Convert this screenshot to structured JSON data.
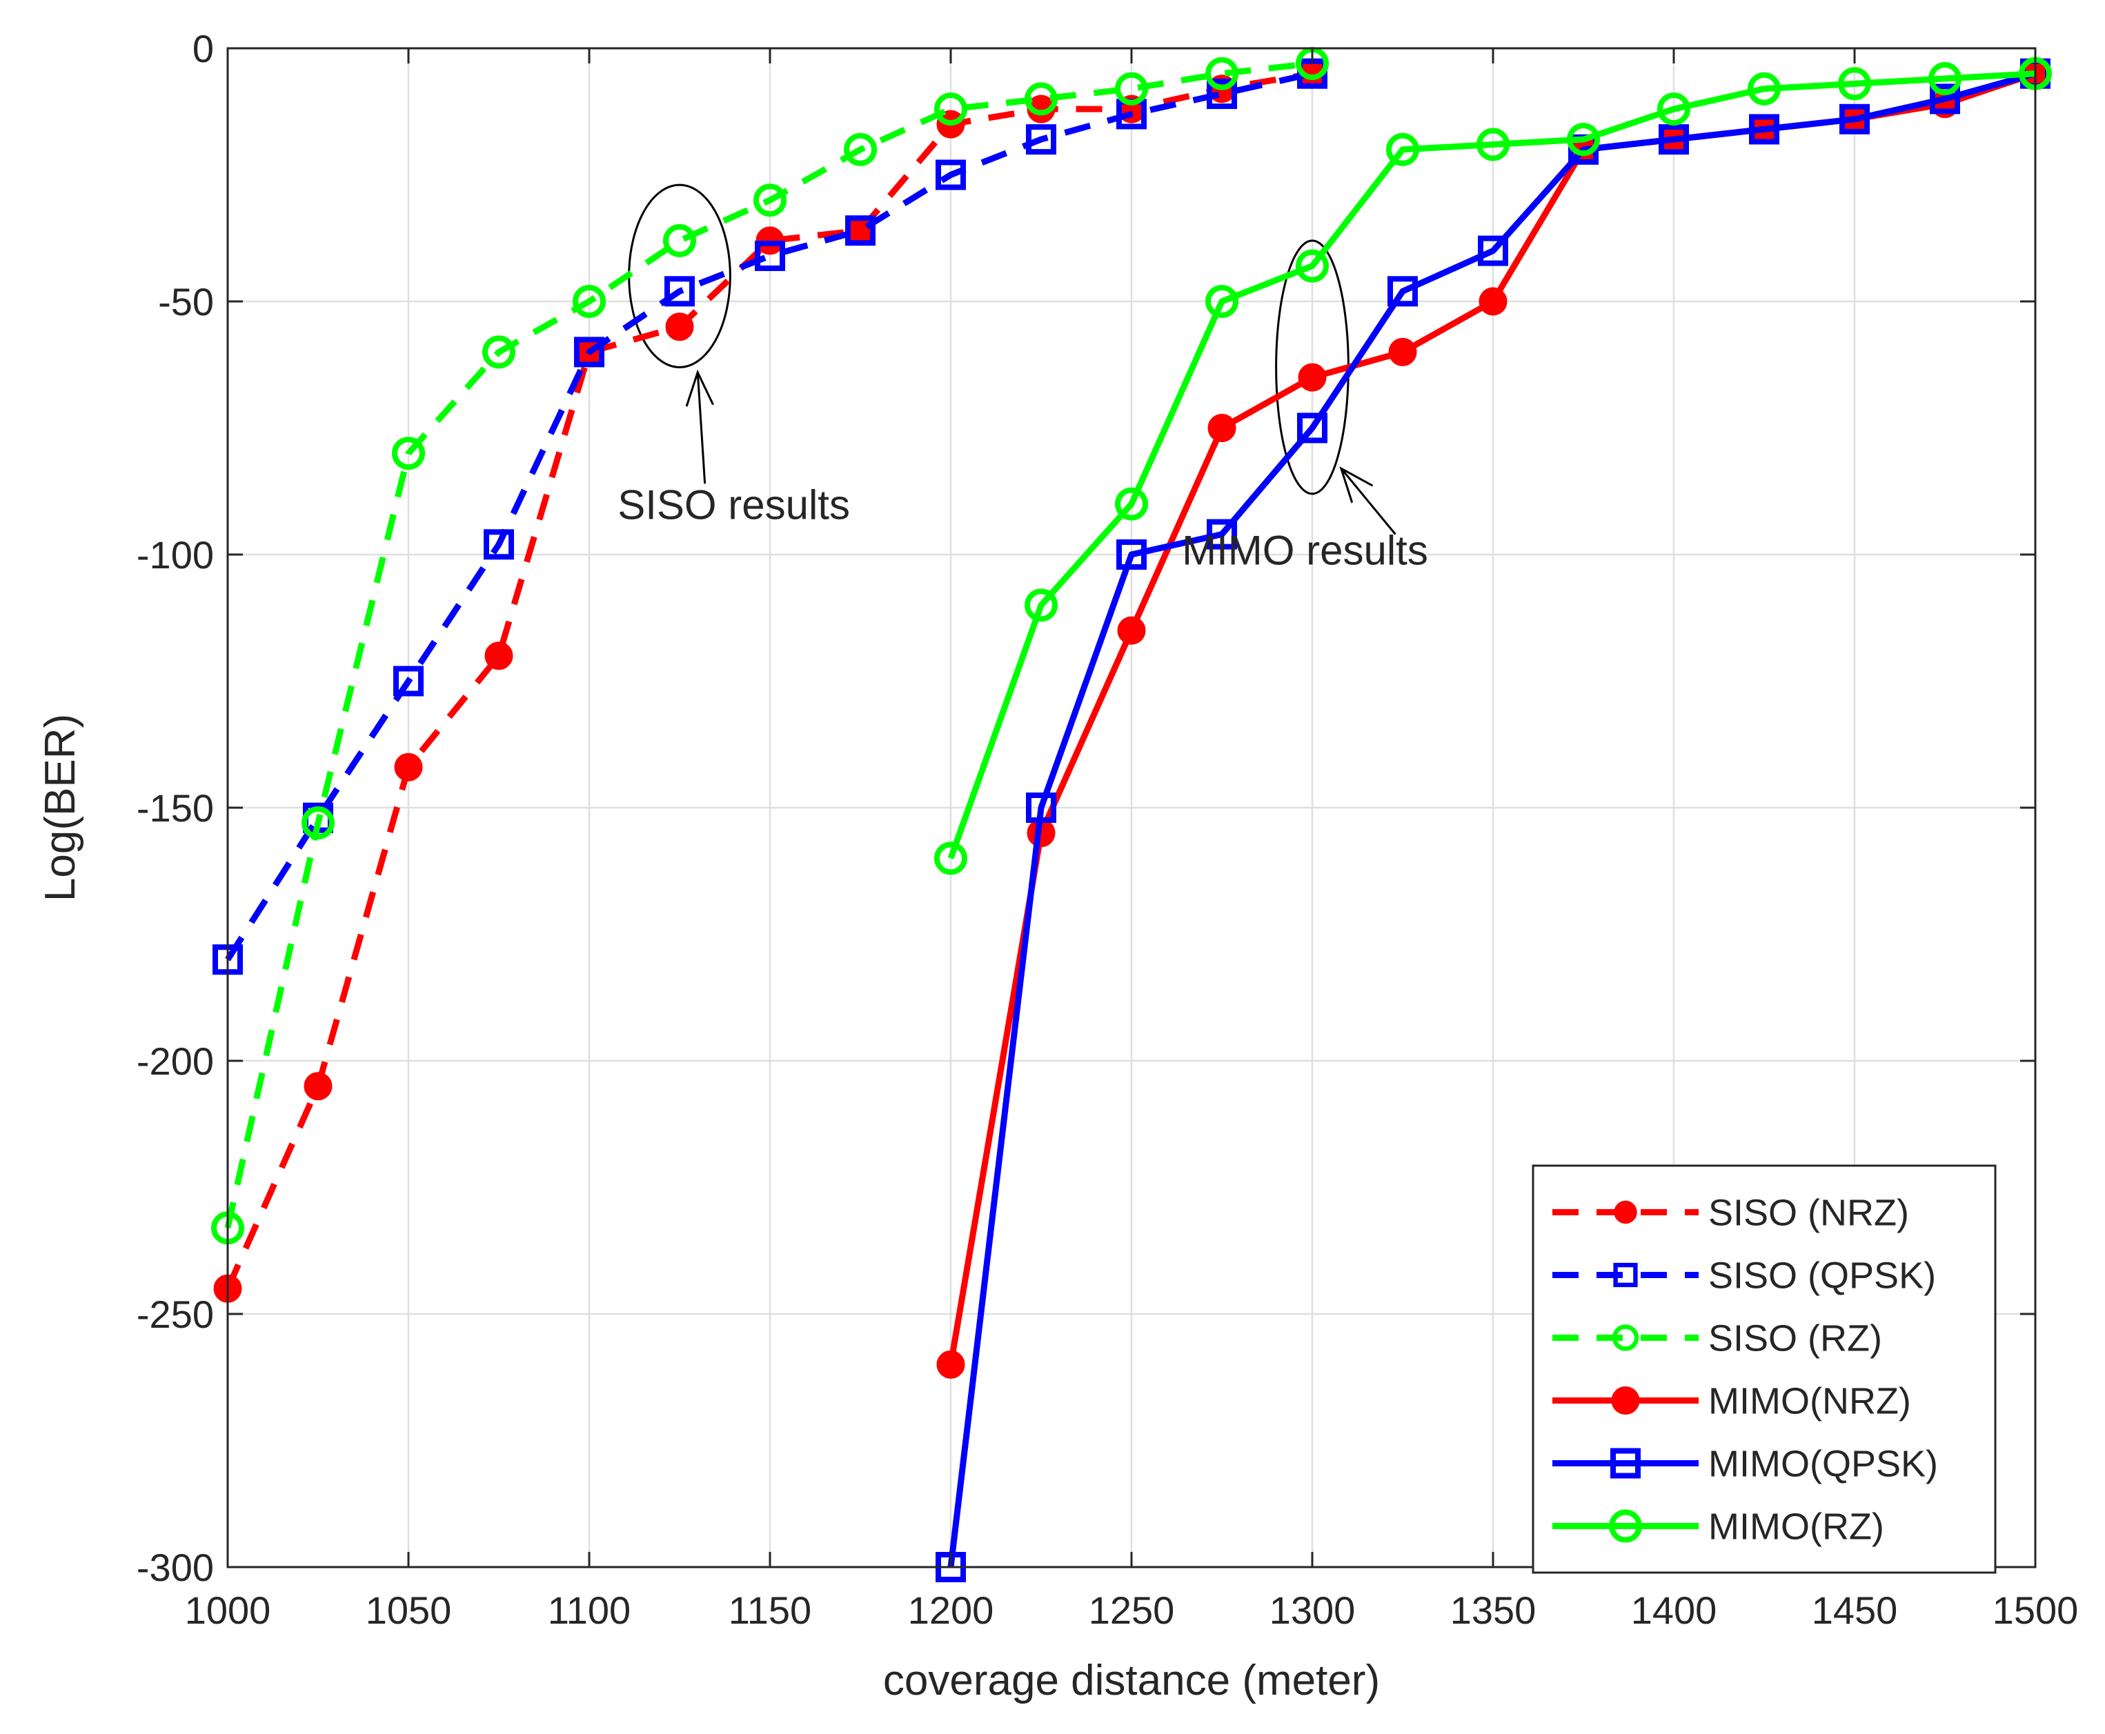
{
  "chart_data": {
    "type": "line",
    "title": "",
    "xlabel": "coverage distance (meter)",
    "ylabel": "Log(BER)",
    "xlim": [
      1000,
      1500
    ],
    "ylim": [
      -300,
      0
    ],
    "xticks": [
      1000,
      1050,
      1100,
      1150,
      1200,
      1250,
      1300,
      1350,
      1400,
      1450,
      1500
    ],
    "yticks": [
      0,
      -50,
      -100,
      -150,
      -200,
      -250,
      -300
    ],
    "grid": true,
    "legend_position": "bottom-right",
    "series": [
      {
        "name": "SISO (NRZ)",
        "color": "#ff0000",
        "line": "dashed",
        "marker": "filled-circle",
        "x": [
          1000,
          1025,
          1050,
          1075,
          1100,
          1125,
          1150,
          1175,
          1200,
          1225,
          1250,
          1275,
          1300
        ],
        "y": [
          -245,
          -205,
          -142,
          -120,
          -60,
          -55,
          -38,
          -36,
          -15,
          -12,
          -12,
          -8,
          -5
        ]
      },
      {
        "name": "SISO (QPSK)",
        "color": "#0000ff",
        "line": "dashed",
        "marker": "square",
        "x": [
          1000,
          1025,
          1050,
          1075,
          1100,
          1125,
          1150,
          1175,
          1200,
          1225,
          1250,
          1275,
          1300
        ],
        "y": [
          -180,
          -152,
          -125,
          -98,
          -60,
          -48,
          -41,
          -36,
          -25,
          -18,
          -13,
          -9,
          -5
        ]
      },
      {
        "name": "SISO (RZ)",
        "color": "#00ff00",
        "line": "dashed",
        "marker": "open-circle",
        "x": [
          1000,
          1025,
          1050,
          1075,
          1100,
          1125,
          1150,
          1175,
          1200,
          1225,
          1250,
          1275,
          1300
        ],
        "y": [
          -233,
          -153,
          -80,
          -60,
          -50,
          -38,
          -30,
          -20,
          -12,
          -10,
          -8,
          -5,
          -3
        ]
      },
      {
        "name": "MIMO(NRZ)",
        "color": "#ff0000",
        "line": "solid",
        "marker": "filled-circle",
        "x": [
          1200,
          1225,
          1250,
          1275,
          1300,
          1325,
          1350,
          1375,
          1400,
          1425,
          1450,
          1475,
          1500
        ],
        "y": [
          -260,
          -155,
          -115,
          -75,
          -65,
          -60,
          -50,
          -20,
          -18,
          -16,
          -14,
          -11,
          -5
        ]
      },
      {
        "name": "MIMO(QPSK)",
        "color": "#0000ff",
        "line": "solid",
        "marker": "square",
        "x": [
          1200,
          1225,
          1250,
          1275,
          1300,
          1325,
          1350,
          1375,
          1400,
          1425,
          1450,
          1475,
          1500
        ],
        "y": [
          -300,
          -150,
          -100,
          -96,
          -75,
          -48,
          -40,
          -20,
          -18,
          -16,
          -14,
          -10,
          -5
        ]
      },
      {
        "name": "MIMO(RZ)",
        "color": "#00ff00",
        "line": "solid",
        "marker": "open-circle",
        "x": [
          1200,
          1225,
          1250,
          1275,
          1300,
          1325,
          1350,
          1375,
          1400,
          1425,
          1450,
          1475,
          1500
        ],
        "y": [
          -160,
          -110,
          -90,
          -50,
          -43,
          -20,
          -19,
          -18,
          -12,
          -8,
          -7,
          -6,
          -5
        ]
      }
    ],
    "annotations": [
      {
        "id": "siso",
        "text": "SISO results",
        "ellipse_center": [
          1125,
          -45
        ],
        "ellipse_radius": [
          14,
          18
        ],
        "text_anchor": [
          1140,
          -93
        ],
        "arrow_from": [
          1132,
          -86
        ],
        "arrow_to": [
          1130,
          -64
        ]
      },
      {
        "id": "mimo",
        "text": "MIMO results",
        "ellipse_center": [
          1300,
          -63
        ],
        "ellipse_radius": [
          10,
          25
        ],
        "text_anchor": [
          1298,
          -102
        ],
        "arrow_from": [
          1323,
          -96
        ],
        "arrow_to": [
          1308,
          -83
        ]
      }
    ]
  }
}
